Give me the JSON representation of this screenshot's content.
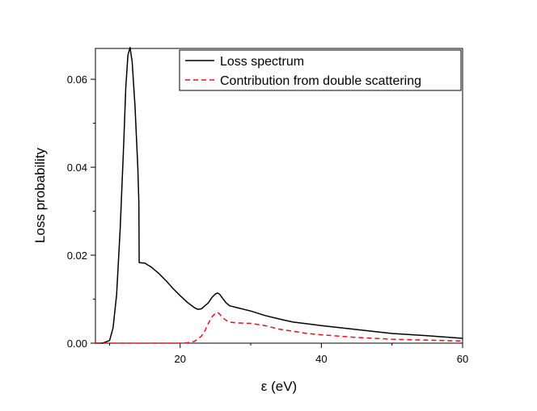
{
  "chart_data": {
    "type": "line",
    "title": "",
    "xlabel": "ε (eV)",
    "ylabel": "Loss probability",
    "xlim": [
      8,
      60
    ],
    "ylim": [
      0,
      0.067
    ],
    "x_ticks": [
      20,
      40,
      60
    ],
    "x_minor_ticks": [
      10,
      30,
      50
    ],
    "y_ticks": [
      0.0,
      0.02,
      0.04,
      0.06
    ],
    "y_tick_labels": [
      "0.00",
      "0.02",
      "0.04",
      "0.06"
    ],
    "y_minor_ticks": [
      0.01,
      0.03,
      0.05
    ],
    "grid": false,
    "legend_position": "top-right",
    "series": [
      {
        "name": "Loss spectrum",
        "color": "#000000",
        "style": "solid",
        "x": [
          8,
          9,
          10,
          10.5,
          11,
          11.5,
          12,
          12.3,
          12.6,
          12.9,
          13.2,
          13.6,
          14.0,
          14.15,
          14.2,
          15,
          16,
          17,
          18,
          19,
          20,
          21,
          22,
          22.5,
          23,
          24,
          24.5,
          25,
          25.3,
          25.6,
          26,
          26.5,
          27,
          28,
          30,
          32,
          34,
          36,
          38,
          40,
          45,
          50,
          55,
          60
        ],
        "y": [
          0,
          0,
          0.0006,
          0.0035,
          0.011,
          0.026,
          0.045,
          0.058,
          0.0655,
          0.0672,
          0.064,
          0.054,
          0.04,
          0.032,
          0.0183,
          0.0182,
          0.0172,
          0.0158,
          0.0142,
          0.0124,
          0.0108,
          0.0093,
          0.0081,
          0.0077,
          0.0078,
          0.0092,
          0.0104,
          0.0112,
          0.0114,
          0.0111,
          0.0102,
          0.0092,
          0.0085,
          0.0081,
          0.0073,
          0.0063,
          0.0055,
          0.0048,
          0.0044,
          0.004,
          0.0031,
          0.0022,
          0.0017,
          0.0011
        ]
      },
      {
        "name": "Contribution from double scattering",
        "color": "#e8101a",
        "style": "dashed",
        "x": [
          8,
          20,
          21,
          22,
          22.5,
          23,
          23.5,
          24,
          24.5,
          25,
          25.3,
          25.6,
          26,
          26.5,
          27,
          28,
          30,
          32,
          34,
          36,
          38,
          40,
          45,
          50,
          55,
          60
        ],
        "y": [
          0,
          0,
          0.0001,
          0.0004,
          0.0009,
          0.0016,
          0.0028,
          0.0045,
          0.006,
          0.0068,
          0.007,
          0.0066,
          0.0058,
          0.0052,
          0.0048,
          0.0046,
          0.0045,
          0.004,
          0.0032,
          0.0027,
          0.0022,
          0.0019,
          0.0013,
          0.0009,
          0.0007,
          0.0005
        ]
      }
    ]
  }
}
